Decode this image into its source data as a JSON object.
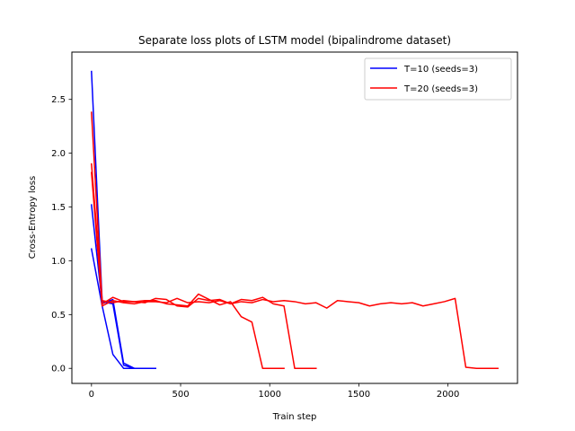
{
  "chart_data": {
    "type": "line",
    "title": "Separate loss plots of LSTM model (bipalindrome dataset)",
    "xlabel": "Train step",
    "ylabel": "Cross-Entropy loss",
    "xlim": [
      -110,
      2390
    ],
    "ylim": [
      -0.14,
      2.94
    ],
    "xticks": [
      0,
      500,
      1000,
      1500,
      2000
    ],
    "xtick_labels": [
      "0",
      "500",
      "1000",
      "1500",
      "2000"
    ],
    "yticks": [
      0.0,
      0.5,
      1.0,
      1.5,
      2.0,
      2.5
    ],
    "ytick_labels": [
      "0.0",
      "0.5",
      "1.0",
      "1.5",
      "2.0",
      "2.5"
    ],
    "grid": false,
    "legend_position": "upper right",
    "legend": [
      {
        "label": "T=10 (seeds=3)",
        "color": "#0000ff"
      },
      {
        "label": "T=20 (seeds=3)",
        "color": "#ff0000"
      }
    ],
    "series": [
      {
        "group": "T=10 (seeds=3)",
        "color": "#0000ff",
        "x": [
          0,
          60,
          120,
          180,
          240,
          300,
          360
        ],
        "y": [
          2.76,
          0.62,
          0.6,
          0.03,
          0.0,
          0.0,
          0.0
        ]
      },
      {
        "group": "T=10 (seeds=3)",
        "color": "#0000ff",
        "x": [
          0,
          60,
          120,
          180,
          240,
          300
        ],
        "y": [
          1.52,
          0.6,
          0.64,
          0.05,
          0.0,
          0.0
        ]
      },
      {
        "group": "T=10 (seeds=3)",
        "color": "#0000ff",
        "x": [
          0,
          60,
          120,
          180,
          240
        ],
        "y": [
          1.11,
          0.58,
          0.13,
          0.0,
          0.0
        ]
      },
      {
        "group": "T=20 (seeds=3)",
        "color": "#ff0000",
        "x": [
          0,
          60,
          120,
          180,
          240,
          300,
          360,
          420,
          480,
          540,
          600,
          660,
          720,
          780,
          840,
          900,
          960,
          1020,
          1080
        ],
        "y": [
          2.38,
          0.6,
          0.66,
          0.62,
          0.62,
          0.63,
          0.63,
          0.6,
          0.59,
          0.58,
          0.69,
          0.64,
          0.59,
          0.62,
          0.48,
          0.43,
          0.0,
          0.0,
          0.0
        ]
      },
      {
        "group": "T=20 (seeds=3)",
        "color": "#ff0000",
        "x": [
          0,
          60,
          120,
          180,
          240,
          300,
          360,
          420,
          480,
          540,
          600,
          660,
          720,
          780,
          840,
          900,
          960,
          1020,
          1080,
          1140,
          1200,
          1260
        ],
        "y": [
          1.9,
          0.63,
          0.61,
          0.63,
          0.62,
          0.61,
          0.65,
          0.64,
          0.58,
          0.57,
          0.65,
          0.63,
          0.64,
          0.6,
          0.64,
          0.63,
          0.66,
          0.6,
          0.58,
          0.0,
          0.0,
          0.0
        ]
      },
      {
        "group": "T=20 (seeds=3)",
        "color": "#ff0000",
        "x": [
          0,
          60,
          120,
          180,
          240,
          300,
          360,
          420,
          480,
          540,
          600,
          660,
          720,
          780,
          840,
          900,
          960,
          1020,
          1080,
          1140,
          1200,
          1260,
          1320,
          1380,
          1440,
          1500,
          1560,
          1620,
          1680,
          1740,
          1800,
          1860,
          1920,
          1980,
          2040,
          2100,
          2160,
          2220,
          2280
        ],
        "y": [
          1.82,
          0.58,
          0.63,
          0.61,
          0.6,
          0.62,
          0.62,
          0.61,
          0.65,
          0.61,
          0.62,
          0.61,
          0.63,
          0.6,
          0.62,
          0.61,
          0.64,
          0.62,
          0.63,
          0.62,
          0.6,
          0.61,
          0.56,
          0.63,
          0.62,
          0.61,
          0.58,
          0.6,
          0.61,
          0.6,
          0.61,
          0.58,
          0.6,
          0.62,
          0.65,
          0.01,
          0.0,
          0.0,
          0.0
        ]
      }
    ]
  }
}
